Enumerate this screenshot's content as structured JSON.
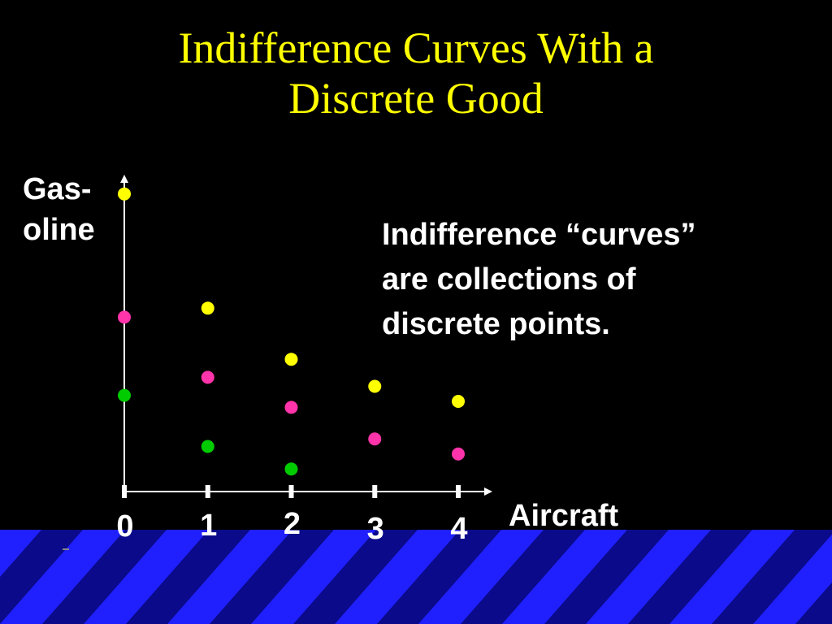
{
  "title_lines": [
    "Indifference Curves With a",
    "Discrete Good"
  ],
  "annotation_lines": [
    "Indifference “curves”",
    "are collections of",
    "discrete points."
  ],
  "colors": {
    "background": "#000000",
    "title": "#ffff00",
    "text": "#ffffff",
    "stripe_dark": "#0a0a8a",
    "stripe_light": "#2020ff"
  },
  "chart_data": {
    "type": "scatter",
    "xlabel": "Aircraft",
    "ylabel_lines": [
      "Gas-",
      "oline"
    ],
    "x_ticks": [
      0,
      1,
      2,
      3,
      4
    ],
    "xlim": [
      0,
      4.5
    ],
    "ylim": [
      0,
      10
    ],
    "grid": false,
    "series": [
      {
        "color": "#ffff00",
        "points": [
          [
            0,
            9.9
          ],
          [
            1,
            6.1
          ],
          [
            2,
            4.4
          ],
          [
            3,
            3.5
          ],
          [
            4,
            3.0
          ]
        ]
      },
      {
        "color": "#ff33aa",
        "points": [
          [
            0,
            5.8
          ],
          [
            1,
            3.8
          ],
          [
            2,
            2.8
          ],
          [
            3,
            1.75
          ],
          [
            4,
            1.25
          ]
        ]
      },
      {
        "color": "#00cc00",
        "points": [
          [
            0,
            3.2
          ],
          [
            1,
            1.5
          ],
          [
            2,
            0.75
          ]
        ]
      }
    ]
  }
}
